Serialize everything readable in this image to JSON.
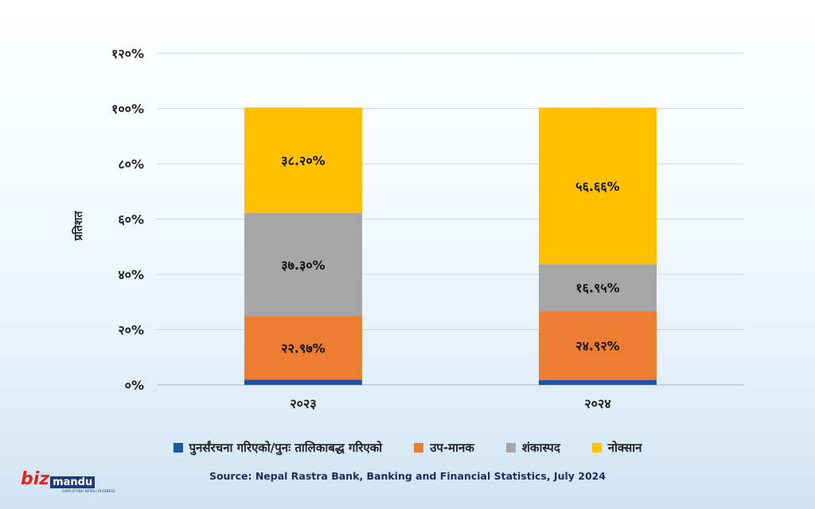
{
  "chart_data": {
    "type": "bar",
    "stacked": true,
    "categories": [
      "२०२३",
      "२०२४"
    ],
    "series": [
      {
        "name": "पुनर्संरचना गरिएको/पुनः तालिकाबद्ध गरिएको",
        "color": "#1f55a5",
        "values": [
          1.9,
          1.8
        ],
        "labels": [
          "",
          ""
        ]
      },
      {
        "name": "उप-मानक",
        "color": "#ed7d31",
        "values": [
          22.97,
          24.92
        ],
        "labels": [
          "२२.९७%",
          "२४.९२%"
        ]
      },
      {
        "name": "शंकास्पद",
        "color": "#a6a6a6",
        "values": [
          37.3,
          16.95
        ],
        "labels": [
          "३७.३०%",
          "१६.९५%"
        ]
      },
      {
        "name": "नोक्सान",
        "color": "#ffc000",
        "values": [
          38.2,
          56.66
        ],
        "labels": [
          "३८.२०%",
          "५६.६६%"
        ]
      }
    ],
    "ylabel": "प्रतिशत",
    "ylim": [
      0,
      120
    ],
    "yticks": [
      0,
      20,
      40,
      60,
      80,
      100,
      120
    ],
    "ytick_labels": [
      "०%",
      "२०%",
      "४०%",
      "६०%",
      "८०%",
      "१००%",
      "१२०%"
    ],
    "grid": true,
    "legend_position": "bottom"
  },
  "source": "Source: Nepal Rastra Bank, Banking and Financial Statistics, July 2024",
  "logo": {
    "part1": "biz",
    "part2": "mandu",
    "tagline": "SIMPLIFYING NEPALI BUSINESS"
  }
}
